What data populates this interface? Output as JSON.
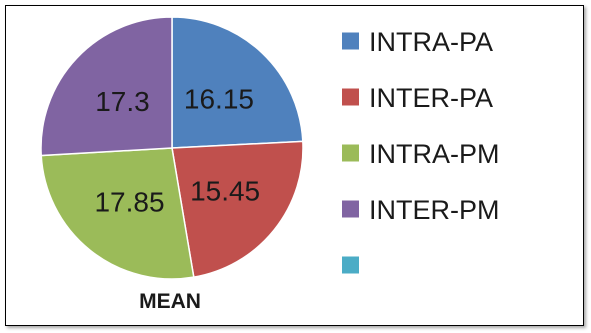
{
  "chart_data": {
    "type": "pie",
    "title": "MEAN",
    "slices": [
      {
        "label": "INTRA-PA",
        "value": 16.15,
        "display": "16.15",
        "color": "#4F81BD"
      },
      {
        "label": "INTER-PA",
        "value": 15.45,
        "display": "15.45",
        "color": "#C0504D"
      },
      {
        "label": "INTRA-PM",
        "value": 17.85,
        "display": "17.85",
        "color": "#9BBB59"
      },
      {
        "label": "INTER-PM",
        "value": 17.3,
        "display": "17.3",
        "color": "#8064A2"
      }
    ],
    "legend": [
      {
        "label": "INTRA-PA",
        "color": "#4F81BD"
      },
      {
        "label": "INTER-PA",
        "color": "#C0504D"
      },
      {
        "label": "INTRA-PM",
        "color": "#9BBB59"
      },
      {
        "label": "INTER-PM",
        "color": "#8064A2"
      },
      {
        "label": "",
        "color": "#4BACC6"
      }
    ],
    "legend_position": "right",
    "start_angle": "12 o'clock",
    "direction": "clockwise"
  }
}
